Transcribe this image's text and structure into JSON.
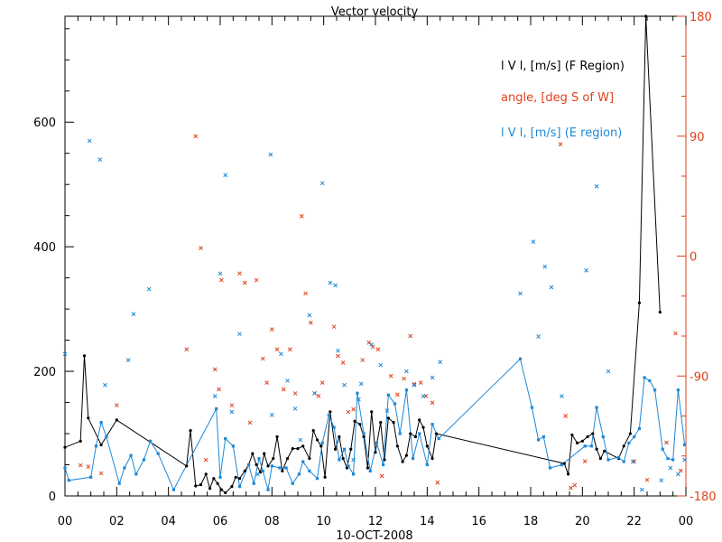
{
  "chart_data": {
    "type": "scatter",
    "title": "Vector velocity",
    "xlabel": "10-OCT-2008",
    "xlim": [
      0,
      24
    ],
    "x_ticks": [
      "00",
      "02",
      "04",
      "06",
      "08",
      "10",
      "12",
      "14",
      "16",
      "18",
      "20",
      "22",
      "00"
    ],
    "ylim_left": [
      0,
      770
    ],
    "y_ticks_left": [
      "0",
      "200",
      "400",
      "600"
    ],
    "ylim_right": [
      -180,
      180
    ],
    "y_ticks_right": [
      "-180",
      "-90",
      "0",
      "90",
      "180"
    ],
    "colors": {
      "f_region": "#000000",
      "angle": "#e0401a",
      "e_region": "#1e88d6"
    },
    "legend": {
      "f_region": "l V l, [m/s] (F Region)",
      "angle": "angle, [deg S of W]",
      "e_region": "l V l, [m/s] (E region)"
    },
    "series": [
      {
        "name": "l V l, [m/s] (F Region)",
        "role": "f_region",
        "style": "line+dot",
        "points": [
          [
            0.0,
            78
          ],
          [
            0.6,
            88
          ],
          [
            0.75,
            225
          ],
          [
            0.9,
            125
          ],
          [
            1.4,
            82
          ],
          [
            2.0,
            122
          ],
          [
            4.7,
            48
          ],
          [
            4.85,
            105
          ],
          [
            5.05,
            16
          ],
          [
            5.25,
            18
          ],
          [
            5.45,
            35
          ],
          [
            5.6,
            12
          ],
          [
            5.75,
            28
          ],
          [
            5.9,
            20
          ],
          [
            6.05,
            10
          ],
          [
            6.2,
            5
          ],
          [
            6.45,
            15
          ],
          [
            6.6,
            30
          ],
          [
            6.75,
            28
          ],
          [
            6.95,
            40
          ],
          [
            7.1,
            50
          ],
          [
            7.25,
            68
          ],
          [
            7.4,
            50
          ],
          [
            7.55,
            38
          ],
          [
            7.7,
            68
          ],
          [
            7.85,
            48
          ],
          [
            8.05,
            60
          ],
          [
            8.2,
            95
          ],
          [
            8.4,
            40
          ],
          [
            8.6,
            60
          ],
          [
            8.8,
            76
          ],
          [
            9.0,
            76
          ],
          [
            9.2,
            80
          ],
          [
            9.45,
            60
          ],
          [
            9.6,
            105
          ],
          [
            9.75,
            90
          ],
          [
            9.9,
            80
          ],
          [
            10.05,
            30
          ],
          [
            10.25,
            135
          ],
          [
            10.45,
            75
          ],
          [
            10.6,
            95
          ],
          [
            10.75,
            60
          ],
          [
            10.9,
            45
          ],
          [
            11.05,
            75
          ],
          [
            11.2,
            120
          ],
          [
            11.4,
            115
          ],
          [
            11.55,
            95
          ],
          [
            11.7,
            45
          ],
          [
            11.85,
            135
          ],
          [
            12.0,
            70
          ],
          [
            12.2,
            118
          ],
          [
            12.35,
            58
          ],
          [
            12.5,
            125
          ],
          [
            12.7,
            118
          ],
          [
            12.85,
            80
          ],
          [
            13.05,
            55
          ],
          [
            13.2,
            65
          ],
          [
            13.35,
            100
          ],
          [
            13.55,
            95
          ],
          [
            13.7,
            122
          ],
          [
            13.85,
            110
          ],
          [
            14.0,
            80
          ],
          [
            14.2,
            60
          ],
          [
            14.35,
            100
          ],
          [
            19.3,
            52
          ],
          [
            19.45,
            35
          ],
          [
            19.6,
            98
          ],
          [
            19.8,
            85
          ],
          [
            20.0,
            88
          ],
          [
            20.2,
            95
          ],
          [
            20.4,
            100
          ],
          [
            20.55,
            75
          ],
          [
            20.7,
            60
          ],
          [
            20.85,
            72
          ],
          [
            21.4,
            60
          ],
          [
            21.6,
            80
          ],
          [
            21.85,
            100
          ],
          [
            22.2,
            310
          ],
          [
            22.45,
            770
          ],
          [
            23.0,
            295
          ]
        ]
      },
      {
        "name": "l V l, [m/s] (E region)",
        "role": "e_region",
        "style": "line+square",
        "points": [
          [
            0.0,
            45
          ],
          [
            0.15,
            25
          ],
          [
            1.0,
            30
          ],
          [
            1.2,
            80
          ],
          [
            1.4,
            118
          ],
          [
            1.6,
            95
          ],
          [
            2.1,
            20
          ],
          [
            2.3,
            45
          ],
          [
            2.55,
            65
          ],
          [
            2.75,
            35
          ],
          [
            3.05,
            58
          ],
          [
            3.3,
            88
          ],
          [
            3.6,
            68
          ],
          [
            4.2,
            10
          ],
          [
            5.85,
            140
          ],
          [
            6.0,
            30
          ],
          [
            6.2,
            92
          ],
          [
            6.5,
            80
          ],
          [
            6.75,
            15
          ],
          [
            7.1,
            50
          ],
          [
            7.3,
            20
          ],
          [
            7.5,
            60
          ],
          [
            7.65,
            40
          ],
          [
            7.85,
            10
          ],
          [
            8.0,
            48
          ],
          [
            8.3,
            45
          ],
          [
            8.55,
            45
          ],
          [
            8.8,
            20
          ],
          [
            9.05,
            35
          ],
          [
            9.2,
            55
          ],
          [
            9.45,
            40
          ],
          [
            9.75,
            28
          ],
          [
            9.95,
            85
          ],
          [
            10.2,
            130
          ],
          [
            10.4,
            110
          ],
          [
            10.6,
            58
          ],
          [
            10.8,
            75
          ],
          [
            10.95,
            48
          ],
          [
            11.15,
            35
          ],
          [
            11.3,
            165
          ],
          [
            11.55,
            100
          ],
          [
            11.8,
            40
          ],
          [
            12.05,
            85
          ],
          [
            12.3,
            50
          ],
          [
            12.5,
            162
          ],
          [
            12.75,
            148
          ],
          [
            12.95,
            100
          ],
          [
            13.2,
            170
          ],
          [
            13.45,
            60
          ],
          [
            13.7,
            100
          ],
          [
            14.0,
            50
          ],
          [
            14.2,
            115
          ],
          [
            14.45,
            92
          ],
          [
            17.6,
            220
          ],
          [
            18.05,
            142
          ],
          [
            18.3,
            90
          ],
          [
            18.5,
            95
          ],
          [
            18.75,
            45
          ],
          [
            19.2,
            50
          ],
          [
            20.1,
            80
          ],
          [
            20.35,
            80
          ],
          [
            20.55,
            142
          ],
          [
            20.8,
            95
          ],
          [
            21.0,
            58
          ],
          [
            21.4,
            62
          ],
          [
            21.6,
            55
          ],
          [
            21.8,
            85
          ],
          [
            22.0,
            95
          ],
          [
            22.2,
            108
          ],
          [
            22.4,
            190
          ],
          [
            22.6,
            185
          ],
          [
            22.8,
            170
          ],
          [
            23.1,
            75
          ],
          [
            23.3,
            60
          ],
          [
            23.5,
            58
          ],
          [
            23.7,
            170
          ],
          [
            23.95,
            82
          ]
        ]
      },
      {
        "name": "angle, [deg S of W]",
        "role": "angle_markers",
        "axis": "right",
        "style": "cross",
        "points": [
          [
            0.6,
            -157
          ],
          [
            0.9,
            -158
          ],
          [
            1.4,
            -163
          ],
          [
            2.0,
            -112
          ],
          [
            4.7,
            -70
          ],
          [
            5.05,
            90
          ],
          [
            5.25,
            6
          ],
          [
            5.45,
            -153
          ],
          [
            5.8,
            -85
          ],
          [
            5.95,
            -100
          ],
          [
            6.05,
            -18
          ],
          [
            6.45,
            -112
          ],
          [
            6.75,
            -13
          ],
          [
            6.95,
            -20
          ],
          [
            7.15,
            -125
          ],
          [
            7.4,
            -18
          ],
          [
            7.65,
            -77
          ],
          [
            7.8,
            -95
          ],
          [
            8.0,
            -55
          ],
          [
            8.2,
            -70
          ],
          [
            8.45,
            -100
          ],
          [
            8.7,
            -70
          ],
          [
            8.9,
            -103
          ],
          [
            9.15,
            30
          ],
          [
            9.3,
            -28
          ],
          [
            9.5,
            -50
          ],
          [
            9.65,
            -103
          ],
          [
            9.8,
            -105
          ],
          [
            9.95,
            -95
          ],
          [
            10.4,
            -53
          ],
          [
            10.55,
            -75
          ],
          [
            10.75,
            -80
          ],
          [
            10.95,
            -117
          ],
          [
            11.15,
            -115
          ],
          [
            11.5,
            -78
          ],
          [
            11.75,
            -65
          ],
          [
            11.9,
            -68
          ],
          [
            12.1,
            -70
          ],
          [
            12.25,
            -165
          ],
          [
            12.6,
            -90
          ],
          [
            12.85,
            -104
          ],
          [
            13.1,
            -92
          ],
          [
            13.35,
            -60
          ],
          [
            13.5,
            -96
          ],
          [
            13.75,
            -95
          ],
          [
            13.95,
            -105
          ],
          [
            14.2,
            -110
          ],
          [
            14.4,
            -170
          ],
          [
            19.15,
            84
          ],
          [
            19.35,
            -120
          ],
          [
            19.55,
            -174
          ],
          [
            19.7,
            -172
          ],
          [
            20.1,
            -154
          ],
          [
            22.0,
            -154
          ],
          [
            22.5,
            -168
          ],
          [
            23.25,
            -140
          ],
          [
            23.6,
            -58
          ],
          [
            23.8,
            -161
          ]
        ]
      },
      {
        "name": "",
        "role": "e_region_markers",
        "style": "cross",
        "points": [
          [
            0.0,
            228
          ],
          [
            0.95,
            570
          ],
          [
            1.35,
            540
          ],
          [
            1.55,
            178
          ],
          [
            2.45,
            218
          ],
          [
            2.65,
            292
          ],
          [
            3.25,
            332
          ],
          [
            5.8,
            160
          ],
          [
            6.0,
            357
          ],
          [
            6.2,
            515
          ],
          [
            6.45,
            135
          ],
          [
            6.75,
            260
          ],
          [
            7.45,
            35
          ],
          [
            7.95,
            548
          ],
          [
            8.0,
            130
          ],
          [
            8.35,
            228
          ],
          [
            8.6,
            185
          ],
          [
            8.9,
            140
          ],
          [
            9.1,
            90
          ],
          [
            9.45,
            290
          ],
          [
            9.65,
            165
          ],
          [
            9.95,
            502
          ],
          [
            10.25,
            342
          ],
          [
            10.45,
            338
          ],
          [
            10.55,
            233
          ],
          [
            10.8,
            178
          ],
          [
            11.15,
            58
          ],
          [
            11.35,
            155
          ],
          [
            11.45,
            180
          ],
          [
            11.85,
            243
          ],
          [
            12.2,
            210
          ],
          [
            12.45,
            137
          ],
          [
            13.2,
            200
          ],
          [
            13.5,
            178
          ],
          [
            13.85,
            160
          ],
          [
            14.2,
            190
          ],
          [
            14.5,
            215
          ],
          [
            17.6,
            325
          ],
          [
            18.1,
            408
          ],
          [
            18.3,
            256
          ],
          [
            18.55,
            368
          ],
          [
            18.8,
            335
          ],
          [
            19.2,
            160
          ],
          [
            20.15,
            362
          ],
          [
            20.55,
            497
          ],
          [
            21.0,
            200
          ],
          [
            21.95,
            55
          ],
          [
            22.3,
            10
          ],
          [
            23.05,
            25
          ],
          [
            23.4,
            45
          ],
          [
            23.7,
            35
          ],
          [
            23.95,
            58
          ]
        ]
      }
    ]
  }
}
